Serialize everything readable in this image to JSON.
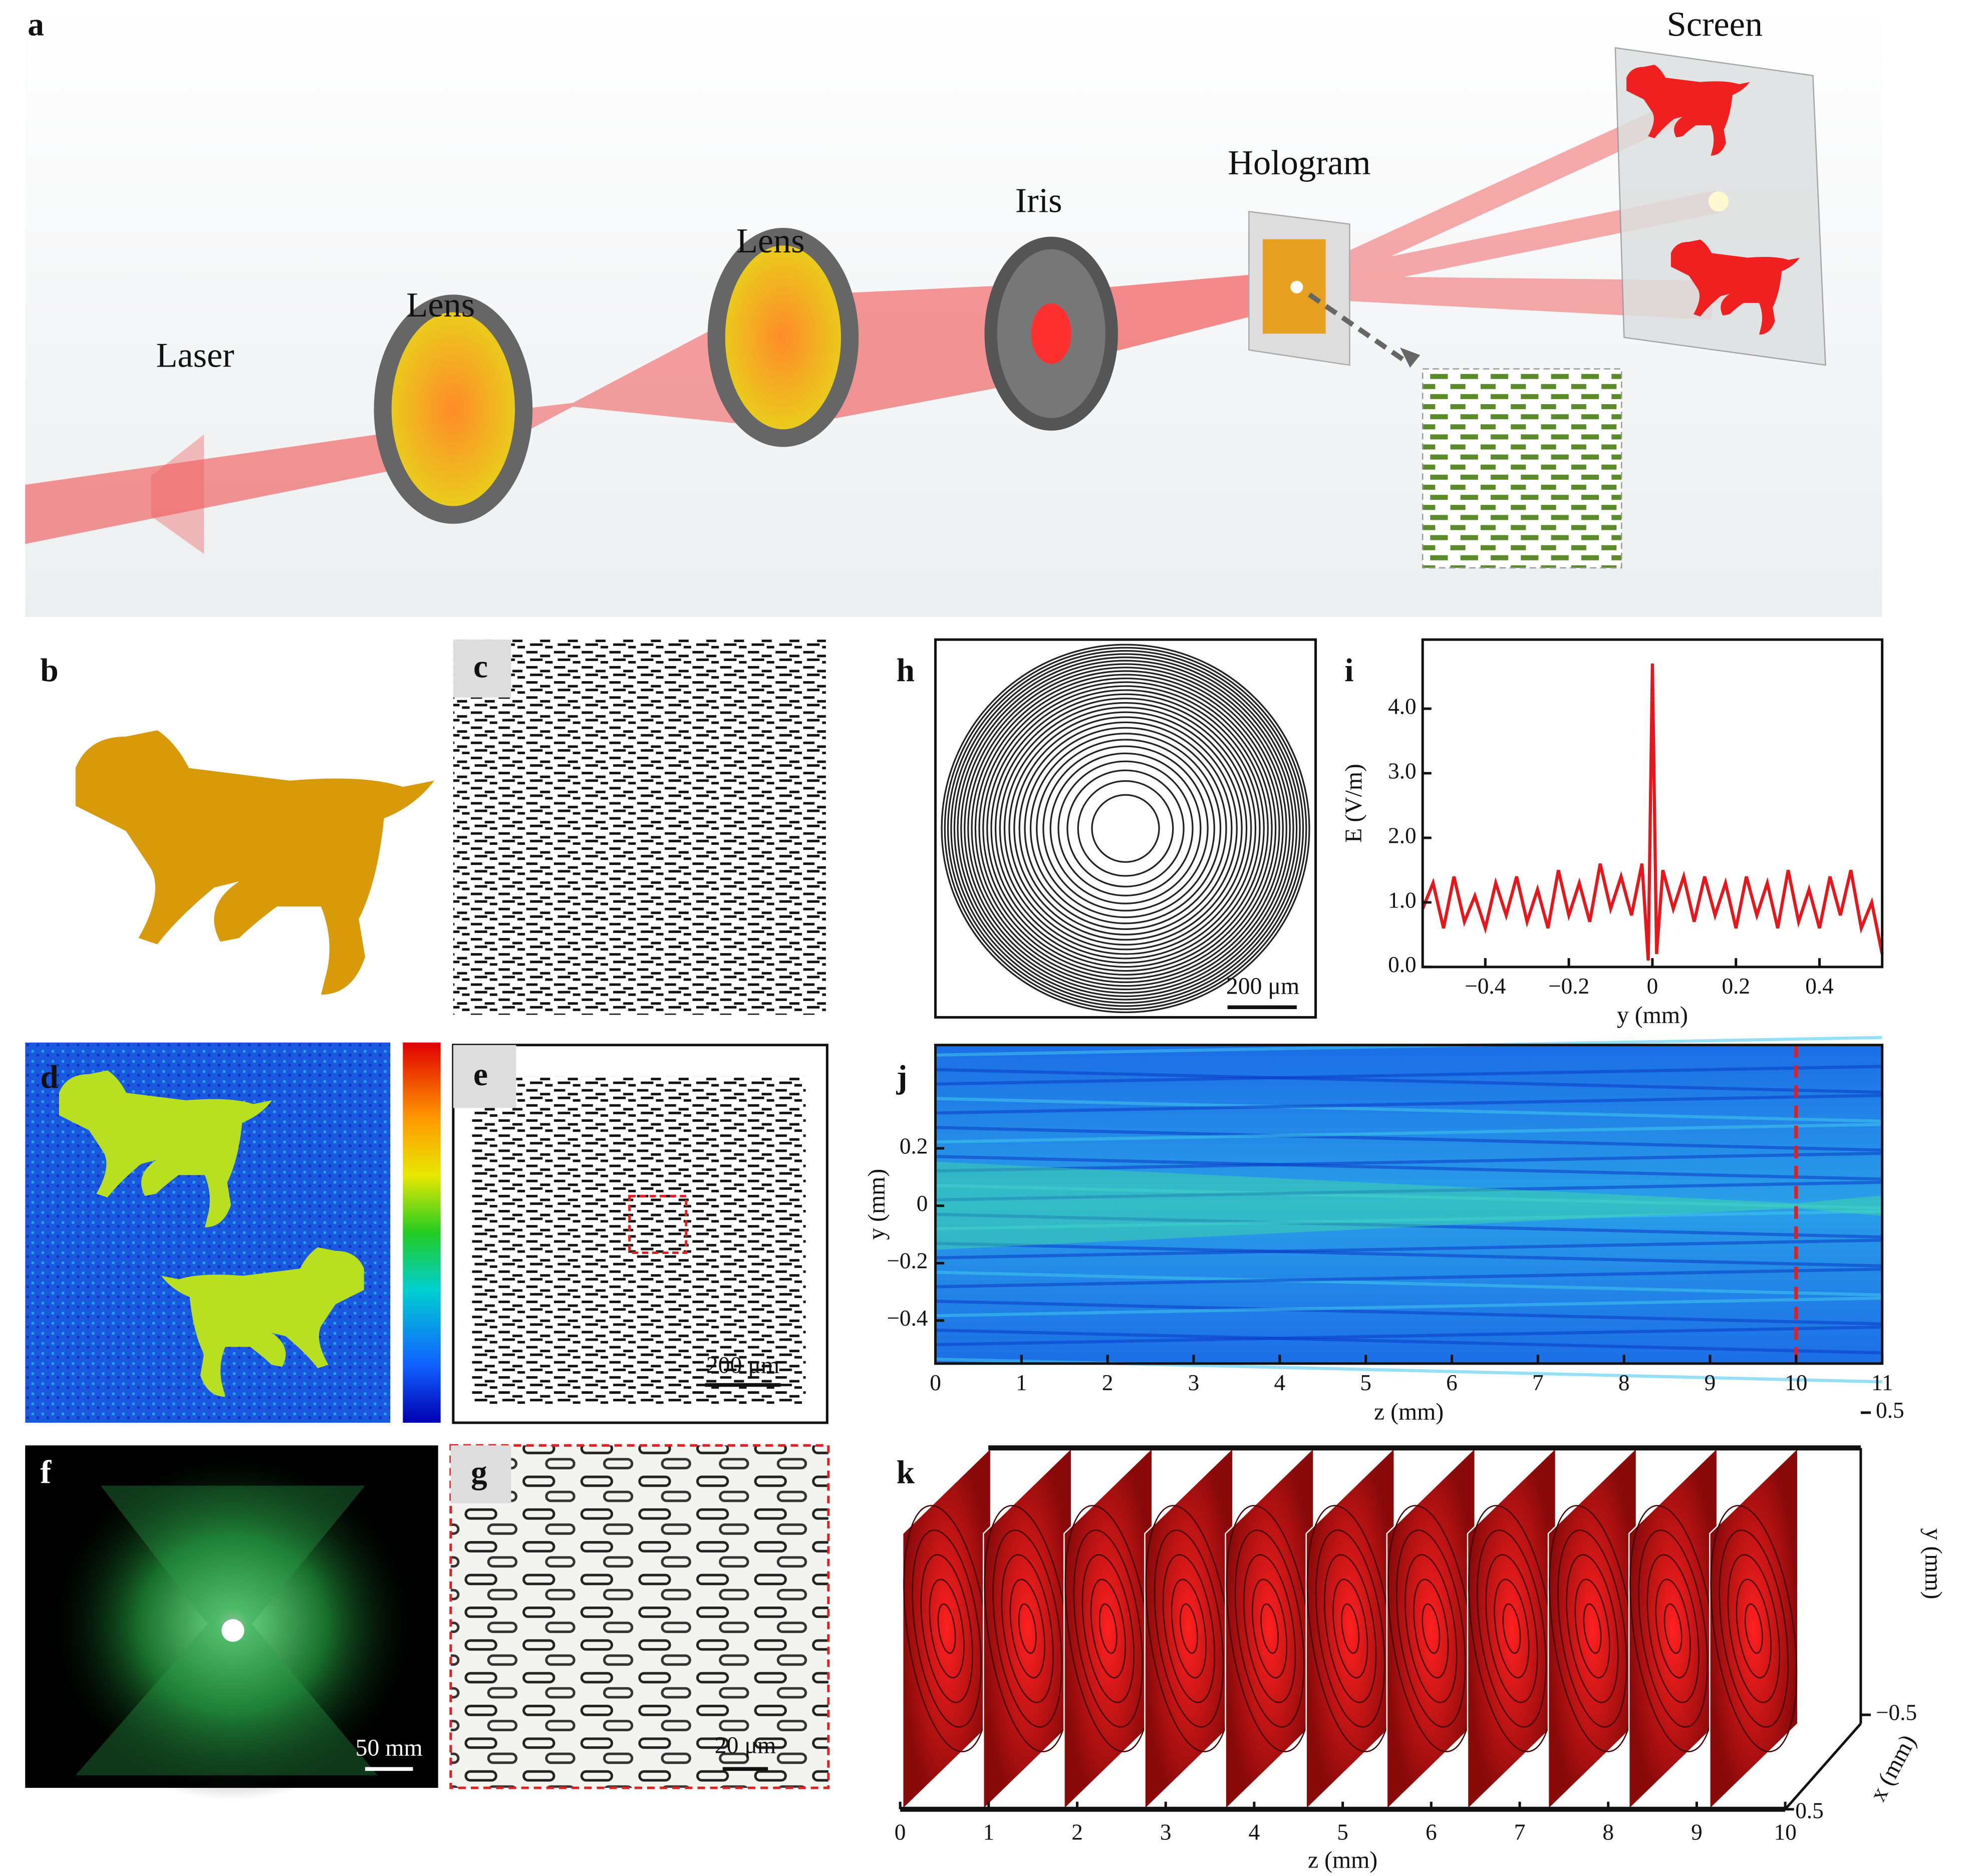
{
  "figure": {
    "panel_labels": {
      "a": "a",
      "b": "b",
      "c": "c",
      "d": "d",
      "e": "e",
      "f": "f",
      "g": "g",
      "h": "h",
      "i": "i",
      "j": "j",
      "k": "k"
    },
    "components": {
      "laser": "Laser",
      "lens1": "Lens",
      "lens2": "Lens",
      "iris": "Iris",
      "hologram": "Hologram",
      "screen": "Screen"
    },
    "scale_bars": {
      "e": "200 μm",
      "f": "50 mm",
      "g": "20 μm",
      "h": "200 μm"
    }
  },
  "chart_data": [
    {
      "type": "line",
      "color": "#e8151b",
      "xlabel": "y (mm)",
      "ylabel": "E (V/m)",
      "x": [
        -0.55,
        -0.525,
        -0.5,
        -0.475,
        -0.45,
        -0.425,
        -0.4,
        -0.375,
        -0.35,
        -0.325,
        -0.3,
        -0.275,
        -0.25,
        -0.225,
        -0.2,
        -0.175,
        -0.15,
        -0.125,
        -0.1,
        -0.075,
        -0.05,
        -0.025,
        -0.01,
        0,
        0.01,
        0.025,
        0.05,
        0.075,
        0.1,
        0.125,
        0.15,
        0.175,
        0.2,
        0.225,
        0.25,
        0.275,
        0.3,
        0.325,
        0.35,
        0.375,
        0.4,
        0.425,
        0.45,
        0.475,
        0.5,
        0.525,
        0.55
      ],
      "values": [
        0.9,
        1.3,
        0.6,
        1.4,
        0.7,
        1.1,
        0.6,
        1.3,
        0.8,
        1.4,
        0.7,
        1.2,
        0.6,
        1.5,
        0.8,
        1.3,
        0.7,
        1.6,
        0.9,
        1.4,
        0.8,
        1.6,
        0.1,
        4.7,
        0.2,
        1.5,
        0.9,
        1.4,
        0.7,
        1.4,
        0.8,
        1.3,
        0.6,
        1.4,
        0.8,
        1.3,
        0.6,
        1.5,
        0.7,
        1.2,
        0.6,
        1.4,
        0.8,
        1.5,
        0.6,
        1.0,
        0.2
      ],
      "xlim": [
        -0.55,
        0.55
      ],
      "xticks": [
        {
          "value": -0.4,
          "label": "−0.4"
        },
        {
          "value": -0.2,
          "label": "−0.2"
        },
        0,
        0.2,
        0.4
      ],
      "ylim": [
        0,
        5.07
      ],
      "yticks": [
        {
          "value": 0,
          "label": "0.0"
        },
        {
          "value": 1,
          "label": "1.0"
        },
        {
          "value": 2,
          "label": "2.0"
        },
        {
          "value": 3,
          "label": "3.0"
        },
        {
          "value": 4,
          "label": "4.0"
        }
      ]
    },
    {
      "type": "heatmap",
      "xlabel": "z (mm)",
      "ylabel": "y (mm)",
      "xlim": [
        0,
        11
      ],
      "xticks": [
        0,
        1,
        2,
        3,
        4,
        5,
        6,
        7,
        8,
        9,
        10,
        11
      ],
      "ylim": [
        -0.55,
        0.56
      ],
      "yticks": [
        0.2,
        0,
        {
          "value": -0.2,
          "label": "−0.2"
        },
        {
          "value": -0.4,
          "label": "−0.4"
        }
      ],
      "marker_line": 10
    },
    {
      "type": "slices",
      "xlabel": "z (mm)",
      "ylabel": "y (mm)",
      "depth_label": "x (mm)",
      "xlim": [
        0,
        10
      ],
      "xticks": [
        0,
        1,
        2,
        3,
        4,
        5,
        6,
        7,
        8,
        9,
        10
      ],
      "ylim": [
        -0.5,
        0.5
      ],
      "yticks": [
        0.5,
        {
          "value": -0.5,
          "label": "−0.5"
        }
      ],
      "depth_ticks": [
        0.5
      ]
    }
  ]
}
